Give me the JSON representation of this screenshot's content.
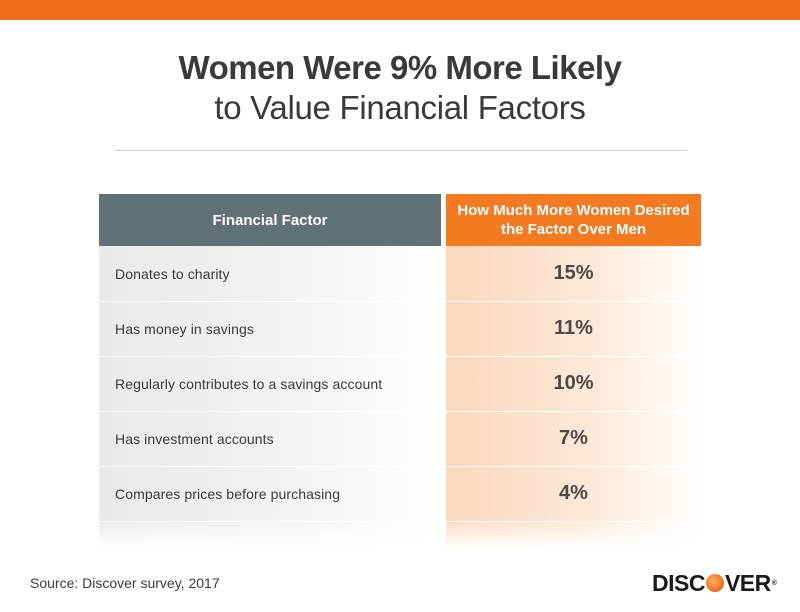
{
  "title": {
    "line1": "Women Were 9% More Likely",
    "line2": "to Value Financial Factors"
  },
  "table": {
    "headers": [
      "Financial Factor",
      "How Much More Women Desired the Factor Over Men"
    ]
  },
  "chart_data": {
    "type": "table",
    "title": "Women Were 9% More Likely to Value Financial Factors",
    "columns": [
      "Financial Factor",
      "How Much More Women Desired the Factor Over Men"
    ],
    "rows": [
      {
        "factor": "Donates to charity",
        "value": "15%"
      },
      {
        "factor": "Has money in savings",
        "value": "11%"
      },
      {
        "factor": "Regularly contributes to a savings account",
        "value": "10%"
      },
      {
        "factor": "Has investment accounts",
        "value": "7%"
      },
      {
        "factor": "Compares prices before purchasing",
        "value": "4%"
      }
    ]
  },
  "footer": {
    "source": "Source: Discover survey, 2017",
    "logo_text_before": "DISC",
    "logo_text_after": "VER",
    "logo_tm": "®"
  },
  "colors": {
    "accent_orange": "#f26a1b",
    "header_gray": "#5f7077",
    "header_orange": "#f47a21"
  }
}
